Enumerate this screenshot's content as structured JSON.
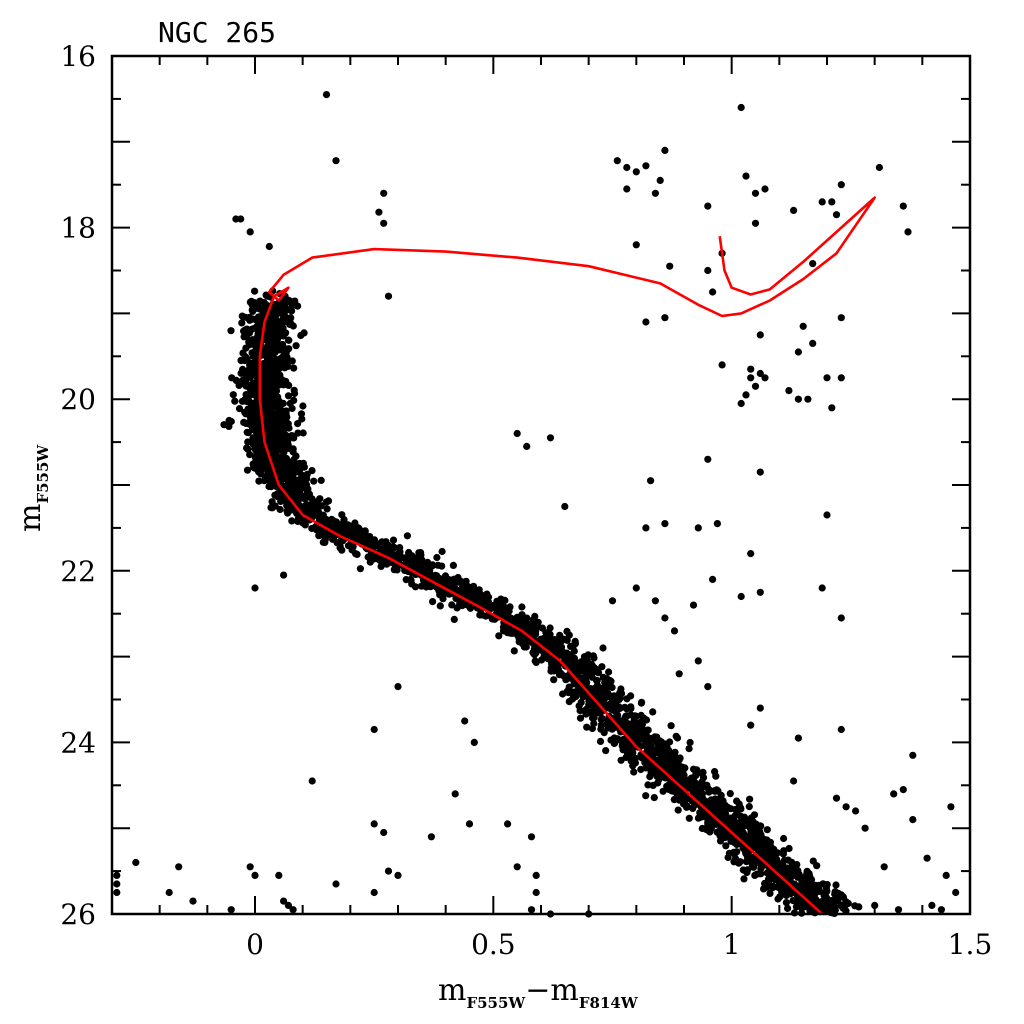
{
  "chart_data": {
    "type": "scatter",
    "title": "NGC 265",
    "xlabel": {
      "main": "m",
      "sub1": "F555W",
      "dash": "−",
      "main2": "m",
      "sub2": "F814W"
    },
    "ylabel": {
      "main": "m",
      "sub": "F555W"
    },
    "xlim": [
      -0.3,
      1.5
    ],
    "ylim": [
      26,
      16
    ],
    "x_major_ticks": [
      0,
      0.5,
      1,
      1.5
    ],
    "x_tick_labels": [
      "0",
      "0.5",
      "1",
      "1.5"
    ],
    "y_major_ticks": [
      16,
      18,
      20,
      22,
      24,
      26
    ],
    "y_tick_labels": [
      "16",
      "18",
      "20",
      "22",
      "24",
      "26"
    ],
    "point_color": "#000000",
    "isochrone_color": "#ff0000",
    "grid": false,
    "legend": "none",
    "isochrone": [
      [
        1.19,
        26.0
      ],
      [
        1.1,
        25.55
      ],
      [
        1.0,
        25.05
      ],
      [
        0.9,
        24.55
      ],
      [
        0.8,
        24.05
      ],
      [
        0.72,
        23.55
      ],
      [
        0.64,
        23.05
      ],
      [
        0.56,
        22.7
      ],
      [
        0.48,
        22.45
      ],
      [
        0.38,
        22.15
      ],
      [
        0.28,
        21.85
      ],
      [
        0.18,
        21.6
      ],
      [
        0.1,
        21.35
      ],
      [
        0.05,
        21.0
      ],
      [
        0.02,
        20.5
      ],
      [
        0.01,
        20.0
      ],
      [
        0.01,
        19.5
      ],
      [
        0.02,
        19.1
      ],
      [
        0.04,
        18.8
      ],
      [
        0.07,
        18.7
      ],
      [
        0.05,
        18.85
      ],
      [
        0.03,
        18.75
      ],
      [
        0.06,
        18.55
      ],
      [
        0.12,
        18.35
      ],
      [
        0.25,
        18.25
      ],
      [
        0.4,
        18.28
      ],
      [
        0.55,
        18.35
      ],
      [
        0.7,
        18.45
      ],
      [
        0.85,
        18.65
      ],
      [
        0.93,
        18.9
      ],
      [
        0.98,
        19.03
      ],
      [
        1.02,
        19.0
      ],
      [
        1.08,
        18.85
      ],
      [
        1.15,
        18.6
      ],
      [
        1.22,
        18.3
      ],
      [
        1.3,
        17.65
      ],
      [
        1.23,
        18.0
      ],
      [
        1.15,
        18.4
      ],
      [
        1.08,
        18.72
      ],
      [
        1.04,
        18.78
      ],
      [
        1.0,
        18.7
      ],
      [
        0.985,
        18.5
      ],
      [
        0.975,
        18.1
      ]
    ],
    "scatter_points": [
      [
        0.15,
        16.45
      ],
      [
        0.17,
        17.22
      ],
      [
        0.27,
        17.6
      ],
      [
        0.26,
        17.82
      ],
      [
        0.27,
        17.95
      ],
      [
        0.28,
        18.8
      ],
      [
        -0.04,
        17.9
      ],
      [
        -0.03,
        17.9
      ],
      [
        -0.01,
        18.05
      ],
      [
        0.03,
        18.22
      ],
      [
        0.76,
        17.22
      ],
      [
        0.78,
        17.3
      ],
      [
        0.8,
        17.35
      ],
      [
        0.82,
        17.28
      ],
      [
        0.85,
        17.45
      ],
      [
        0.86,
        17.1
      ],
      [
        0.78,
        17.55
      ],
      [
        0.84,
        17.6
      ],
      [
        0.8,
        18.2
      ],
      [
        0.87,
        18.45
      ],
      [
        0.82,
        19.1
      ],
      [
        0.86,
        19.05
      ],
      [
        0.95,
        17.75
      ],
      [
        0.98,
        18.3
      ],
      [
        0.95,
        18.5
      ],
      [
        0.96,
        18.75
      ],
      [
        1.02,
        16.6
      ],
      [
        1.03,
        17.4
      ],
      [
        1.05,
        17.6
      ],
      [
        1.05,
        17.95
      ],
      [
        1.07,
        17.55
      ],
      [
        1.13,
        17.8
      ],
      [
        1.19,
        17.7
      ],
      [
        1.21,
        17.7
      ],
      [
        1.22,
        17.85
      ],
      [
        1.23,
        17.5
      ],
      [
        1.31,
        17.3
      ],
      [
        1.36,
        17.75
      ],
      [
        1.37,
        18.05
      ],
      [
        1.17,
        18.42
      ],
      [
        1.15,
        19.15
      ],
      [
        1.17,
        19.35
      ],
      [
        1.14,
        19.45
      ],
      [
        1.06,
        19.25
      ],
      [
        1.04,
        19.65
      ],
      [
        1.04,
        19.75
      ],
      [
        1.06,
        19.7
      ],
      [
        1.05,
        19.85
      ],
      [
        1.02,
        20.05
      ],
      [
        1.03,
        19.95
      ],
      [
        1.07,
        19.75
      ],
      [
        1.12,
        19.9
      ],
      [
        1.14,
        20.0
      ],
      [
        1.16,
        20.0
      ],
      [
        1.2,
        19.75
      ],
      [
        1.21,
        20.1
      ],
      [
        1.23,
        19.05
      ],
      [
        1.23,
        19.75
      ],
      [
        1.2,
        21.35
      ],
      [
        1.19,
        22.2
      ],
      [
        1.06,
        20.85
      ],
      [
        1.04,
        21.8
      ],
      [
        1.06,
        22.25
      ],
      [
        1.02,
        22.3
      ],
      [
        0.98,
        19.6
      ],
      [
        0.95,
        20.7
      ],
      [
        0.93,
        21.5
      ],
      [
        0.97,
        21.45
      ],
      [
        0.96,
        22.1
      ],
      [
        0.92,
        22.4
      ],
      [
        0.83,
        20.95
      ],
      [
        0.82,
        21.5
      ],
      [
        0.86,
        21.45
      ],
      [
        0.8,
        22.2
      ],
      [
        0.84,
        22.35
      ],
      [
        0.86,
        22.55
      ],
      [
        0.88,
        22.7
      ],
      [
        0.62,
        20.45
      ],
      [
        0.55,
        20.4
      ],
      [
        0.57,
        20.55
      ],
      [
        0.65,
        21.25
      ],
      [
        1.23,
        22.55
      ],
      [
        1.23,
        23.85
      ],
      [
        1.34,
        24.6
      ],
      [
        1.38,
        24.15
      ],
      [
        1.36,
        24.55
      ],
      [
        1.38,
        24.9
      ],
      [
        1.46,
        24.75
      ],
      [
        1.41,
        25.35
      ],
      [
        1.24,
        24.75
      ],
      [
        1.26,
        24.8
      ],
      [
        1.14,
        23.95
      ],
      [
        0.3,
        23.35
      ],
      [
        0.25,
        23.85
      ],
      [
        0.25,
        24.95
      ],
      [
        0.27,
        25.05
      ],
      [
        0.37,
        25.1
      ],
      [
        0.45,
        24.95
      ],
      [
        0.53,
        24.95
      ],
      [
        0.58,
        25.1
      ],
      [
        0.12,
        24.45
      ],
      [
        0.06,
        22.05
      ],
      [
        0.0,
        22.2
      ],
      [
        0.17,
        25.65
      ],
      [
        0.28,
        25.5
      ],
      [
        0.3,
        25.55
      ],
      [
        0.25,
        25.75
      ],
      [
        -0.29,
        25.55
      ],
      [
        -0.29,
        25.65
      ],
      [
        -0.29,
        25.75
      ],
      [
        -0.25,
        25.4
      ],
      [
        -0.16,
        25.45
      ],
      [
        -0.18,
        25.75
      ],
      [
        -0.13,
        25.85
      ],
      [
        -0.01,
        25.45
      ],
      [
        0.0,
        25.55
      ],
      [
        0.05,
        25.55
      ],
      [
        0.06,
        25.85
      ],
      [
        0.07,
        25.9
      ],
      [
        0.08,
        25.95
      ],
      [
        -0.05,
        25.95
      ],
      [
        1.45,
        25.55
      ],
      [
        1.44,
        25.95
      ],
      [
        1.47,
        25.75
      ],
      [
        1.42,
        25.9
      ],
      [
        1.35,
        25.95
      ],
      [
        1.3,
        25.9
      ],
      [
        0.58,
        25.95
      ],
      [
        0.62,
        26.0
      ],
      [
        0.7,
        26.0
      ],
      [
        0.59,
        25.75
      ],
      [
        0.59,
        25.55
      ],
      [
        0.55,
        25.45
      ],
      [
        1.28,
        25.0
      ],
      [
        1.32,
        25.45
      ],
      [
        1.22,
        24.65
      ],
      [
        1.13,
        24.45
      ],
      [
        1.04,
        23.8
      ],
      [
        1.06,
        23.6
      ],
      [
        0.95,
        23.35
      ],
      [
        0.93,
        23.05
      ],
      [
        0.89,
        23.2
      ],
      [
        0.75,
        22.35
      ],
      [
        0.73,
        22.9
      ],
      [
        0.46,
        24.0
      ],
      [
        0.42,
        24.6
      ],
      [
        0.44,
        23.75
      ]
    ]
  }
}
